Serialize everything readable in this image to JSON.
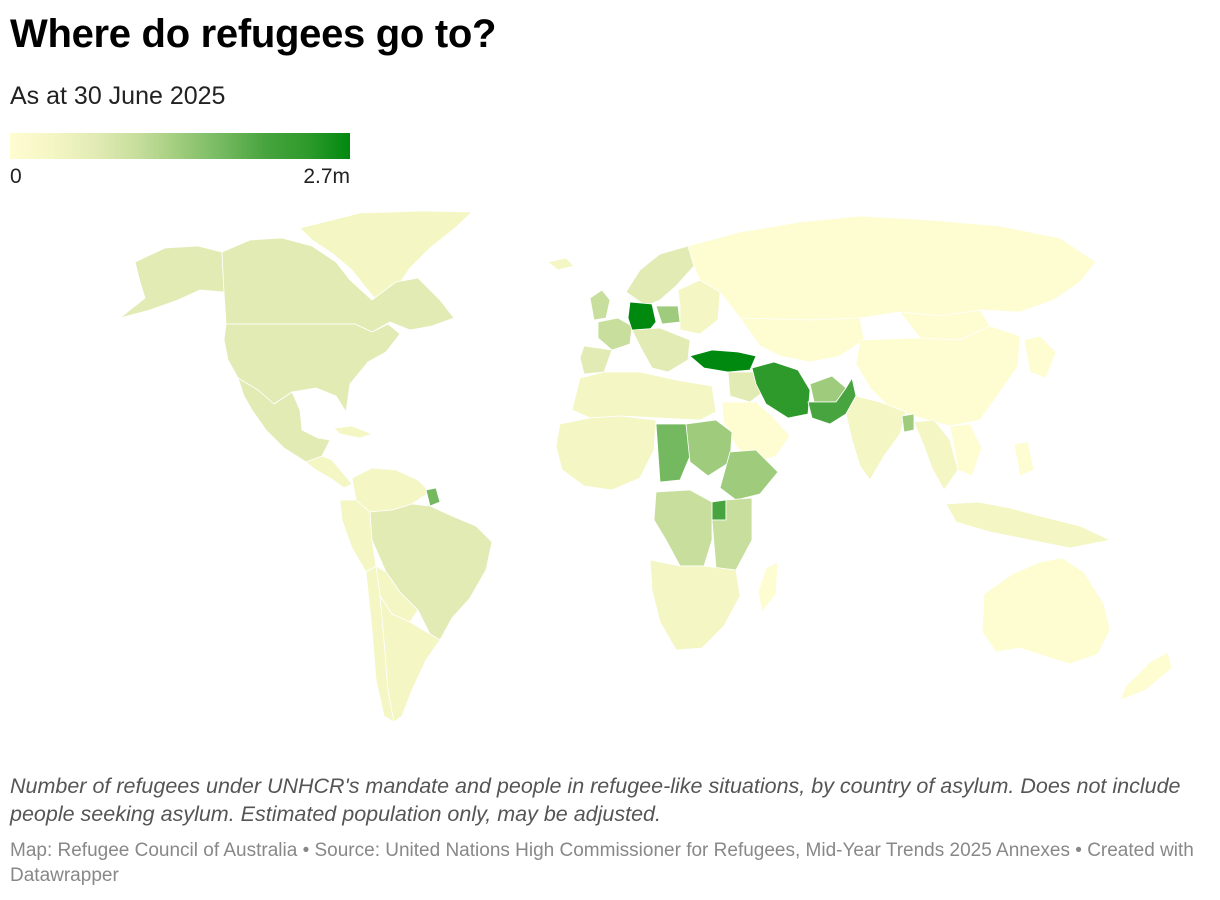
{
  "title": "Where do refugees go to?",
  "subtitle": "As at 30 June 2025",
  "legend": {
    "min_label": "0",
    "max_label": "2.7m",
    "color_low": "#fefcd1",
    "color_high": "#00890f"
  },
  "description": "Number of refugees under UNHCR's mandate and people in refugee-like situations, by country of asylum. Does not include people seeking asylum. Estimated population only, may be adjusted.",
  "notes": {
    "credit": "Map: Refugee Council of Australia",
    "source": "Source: United Nations High Commissioner for Refugees, Mid-Year Trends 2025 Annexes",
    "tool": "Created with Datawrapper"
  },
  "palette": [
    "#fefcd1",
    "#f4f6c4",
    "#e2ebb4",
    "#c7de9c",
    "#9fcc7c",
    "#74b960",
    "#48a43e",
    "#2e9a2c",
    "#00890f"
  ]
}
